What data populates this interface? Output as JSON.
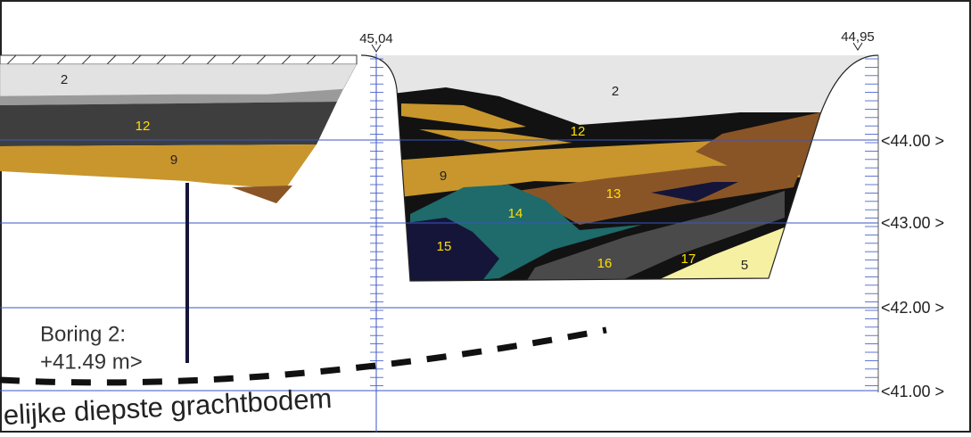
{
  "markers": [
    "45,04",
    "44,95"
  ],
  "elevations": [
    "<44.00 >",
    "<43.00 >",
    "<42.00 >",
    "<41.00 >"
  ],
  "layers_left": [
    "2",
    "12",
    "9"
  ],
  "layers_right": [
    "2",
    "12",
    "9",
    "13",
    "14",
    "15",
    "16",
    "17",
    "5"
  ],
  "boring": {
    "title": "Boring 2:",
    "depth": "+41.49 m>"
  },
  "caption": "elijke diepste grachtbodem"
}
